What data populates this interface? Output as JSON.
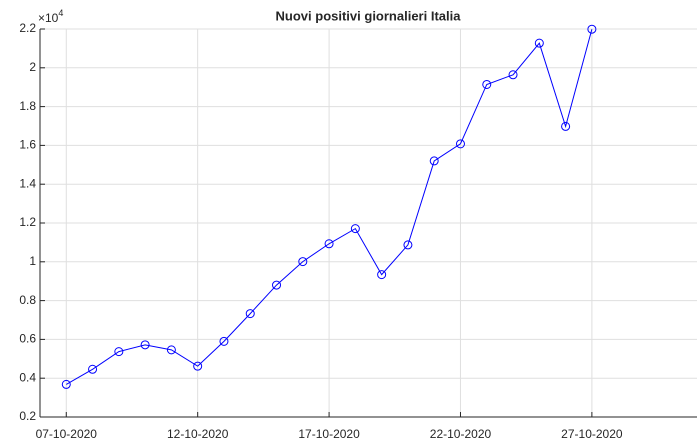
{
  "chart_data": {
    "type": "line",
    "title": "Nuovi positivi giornalieri Italia",
    "y_exponent": {
      "base": "×10",
      "power": "4"
    },
    "x": [
      "07-10-2020",
      "08-10-2020",
      "09-10-2020",
      "10-10-2020",
      "11-10-2020",
      "12-10-2020",
      "13-10-2020",
      "14-10-2020",
      "15-10-2020",
      "16-10-2020",
      "17-10-2020",
      "18-10-2020",
      "19-10-2020",
      "20-10-2020",
      "21-10-2020",
      "22-10-2020",
      "23-10-2020",
      "24-10-2020",
      "25-10-2020",
      "26-10-2020",
      "27-10-2020"
    ],
    "series": [
      {
        "name": "Nuovi positivi",
        "color": "#0000ff",
        "values": [
          0.368,
          0.446,
          0.537,
          0.572,
          0.546,
          0.462,
          0.59,
          0.733,
          0.88,
          1.001,
          1.093,
          1.171,
          0.934,
          1.087,
          1.52,
          1.608,
          1.914,
          1.964,
          2.127,
          1.698,
          2.199
        ]
      }
    ],
    "xlim": [
      "06-10-2020",
      "31-10-2020"
    ],
    "xticks": [
      "07-10-2020",
      "12-10-2020",
      "17-10-2020",
      "22-10-2020",
      "27-10-2020"
    ],
    "ylim": [
      0.2,
      2.2
    ],
    "yticks": [
      0.2,
      0.4,
      0.6,
      0.8,
      1,
      1.2,
      1.4,
      1.6,
      1.8,
      2,
      2.2
    ],
    "grid": true,
    "marker": "circle"
  }
}
